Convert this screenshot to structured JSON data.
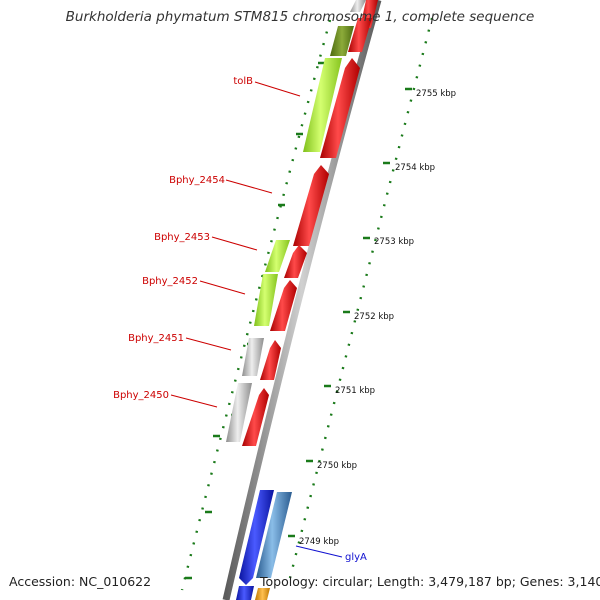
{
  "title": "Burkholderia phymatum STM815 chromosome 1, complete sequence",
  "accession_text": "Accession: NC_010622",
  "summary_text": "Topology: circular; Length: 3,479,187 bp; Genes: 3,140",
  "colors": {
    "backbone": "#8a8a8a",
    "forward_cds": "#e8181f",
    "rna_green": "#a6e634",
    "olive": "#6b8c22",
    "gray_feature": "#bdbdbd",
    "blue_feature": "#1a28e8",
    "steelblue_feature": "#4a86c8",
    "orange_feature": "#f0a020",
    "label_red": "#cc0000",
    "label_blue": "#1010d0",
    "tick_green": "#1a7a1a"
  },
  "scale": {
    "unit": "kbp",
    "tick_labels": [
      "2755 kbp",
      "2754 kbp",
      "2753 kbp",
      "2752 kbp",
      "2751 kbp",
      "2750 kbp",
      "2749 kbp"
    ]
  },
  "gene_labels": [
    "tolB",
    "Bphy_2454",
    "Bphy_2453",
    "Bphy_2452",
    "Bphy_2451",
    "Bphy_2450",
    "glyA"
  ]
}
